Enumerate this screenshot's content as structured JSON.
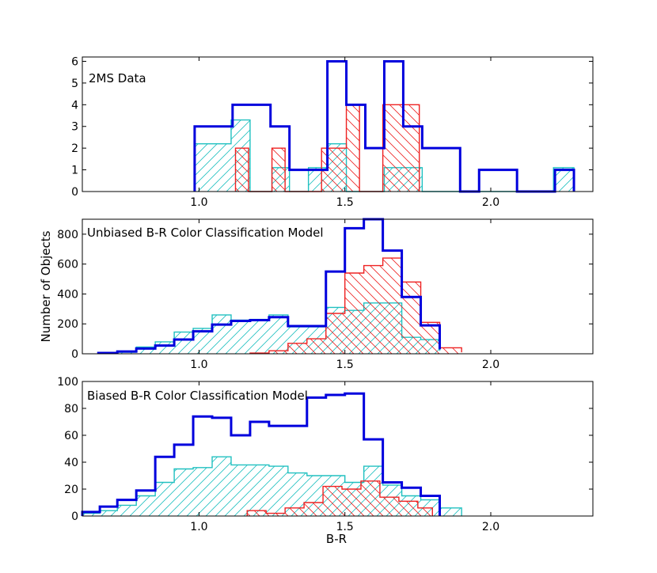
{
  "figure": {
    "ylabel": "Number of Objects",
    "xlabel": "B-R"
  },
  "colors": {
    "total": "#0000dd",
    "blue_class": "#20c0c0",
    "red_class": "#ee2222"
  },
  "chart_data": [
    {
      "type": "histogram",
      "title": "2MS Data",
      "xlim": [
        0.6,
        2.35
      ],
      "ylim": [
        0,
        6.2
      ],
      "xticks": [
        1.0,
        1.5,
        2.0
      ],
      "xtick_labels": [
        "1.0",
        "1.5",
        "2.0"
      ],
      "yticks": [
        0,
        1,
        2,
        3,
        4,
        5,
        6
      ],
      "ytick_labels": [
        "0",
        "1",
        "2",
        "3",
        "4",
        "5",
        "6"
      ],
      "series": [
        {
          "name": "total",
          "color_key": "total",
          "fill": "none",
          "edges": [
            0.985,
            1.115,
            1.245,
            1.31,
            1.375,
            1.44,
            1.505,
            1.57,
            1.635,
            1.7,
            1.765,
            1.895,
            1.96,
            2.09,
            2.22,
            2.285
          ],
          "values": [
            3,
            4,
            3,
            1,
            1,
            6,
            4,
            2,
            6,
            3,
            2,
            0,
            1,
            0,
            1
          ]
        },
        {
          "name": "blue",
          "color_key": "blue_class",
          "fill": "hatch-blue",
          "edges": [
            0.985,
            1.11,
            1.175,
            1.25,
            1.31,
            1.375,
            1.44,
            1.505,
            1.57,
            1.635,
            1.765,
            2.215,
            2.285
          ],
          "values": [
            2.2,
            3.3,
            0,
            1.1,
            0,
            1.1,
            2.2,
            0,
            0,
            1.1,
            0,
            1.1
          ]
        },
        {
          "name": "red",
          "color_key": "red_class",
          "fill": "hatch-red",
          "edges": [
            1.125,
            1.17,
            1.25,
            1.295,
            1.42,
            1.505,
            1.55,
            1.63,
            1.755
          ],
          "values": [
            2,
            0,
            2,
            0,
            2,
            4,
            0,
            4
          ]
        }
      ]
    },
    {
      "type": "histogram",
      "title": "Unbiased B-R Color Classification Model",
      "xlim": [
        0.6,
        2.35
      ],
      "ylim": [
        0,
        900
      ],
      "xticks": [
        1.0,
        1.5,
        2.0
      ],
      "xtick_labels": [
        "1.0",
        "1.5",
        "2.0"
      ],
      "yticks": [
        0,
        200,
        400,
        600,
        800
      ],
      "ytick_labels": [
        "0",
        "200",
        "400",
        "600",
        "800"
      ],
      "series": [
        {
          "name": "total",
          "color_key": "total",
          "fill": "none",
          "edges": [
            0.655,
            0.72,
            0.785,
            0.85,
            0.915,
            0.98,
            1.045,
            1.11,
            1.175,
            1.24,
            1.305,
            1.37,
            1.435,
            1.5,
            1.565,
            1.63,
            1.695,
            1.76,
            1.825
          ],
          "values": [
            5,
            15,
            35,
            55,
            95,
            150,
            195,
            220,
            225,
            245,
            185,
            185,
            550,
            840,
            900,
            690,
            380,
            190,
            30
          ]
        },
        {
          "name": "blue",
          "color_key": "blue_class",
          "fill": "hatch-blue",
          "edges": [
            0.655,
            0.72,
            0.785,
            0.85,
            0.915,
            0.98,
            1.045,
            1.11,
            1.175,
            1.24,
            1.305,
            1.37,
            1.435,
            1.5,
            1.565,
            1.63,
            1.695,
            1.76,
            1.825
          ],
          "values": [
            5,
            10,
            45,
            80,
            145,
            170,
            260,
            225,
            230,
            260,
            180,
            180,
            310,
            290,
            340,
            340,
            110,
            95,
            20
          ]
        },
        {
          "name": "red",
          "color_key": "red_class",
          "fill": "hatch-red",
          "edges": [
            1.175,
            1.24,
            1.305,
            1.37,
            1.435,
            1.5,
            1.565,
            1.63,
            1.695,
            1.76,
            1.825,
            1.9
          ],
          "values": [
            5,
            20,
            70,
            100,
            270,
            540,
            590,
            640,
            480,
            210,
            40,
            10
          ]
        }
      ]
    },
    {
      "type": "histogram",
      "title": "Biased B-R Color Classification Model",
      "xlim": [
        0.6,
        2.35
      ],
      "ylim": [
        0,
        100
      ],
      "xticks": [
        1.0,
        1.5,
        2.0
      ],
      "xtick_labels": [
        "1.0",
        "1.5",
        "2.0"
      ],
      "yticks": [
        0,
        20,
        40,
        60,
        80,
        100
      ],
      "ytick_labels": [
        "0",
        "20",
        "40",
        "60",
        "80",
        "100"
      ],
      "series": [
        {
          "name": "total",
          "color_key": "total",
          "fill": "none",
          "edges": [
            0.6,
            0.66,
            0.72,
            0.785,
            0.85,
            0.915,
            0.98,
            1.045,
            1.11,
            1.175,
            1.24,
            1.305,
            1.37,
            1.435,
            1.5,
            1.565,
            1.63,
            1.695,
            1.76,
            1.825
          ],
          "values": [
            3,
            7,
            12,
            19,
            44,
            53,
            74,
            73,
            60,
            70,
            67,
            67,
            88,
            90,
            91,
            57,
            25,
            21,
            15
          ]
        },
        {
          "name": "blue",
          "color_key": "blue_class",
          "fill": "hatch-blue",
          "edges": [
            0.6,
            0.66,
            0.72,
            0.785,
            0.85,
            0.915,
            0.98,
            1.045,
            1.11,
            1.175,
            1.24,
            1.305,
            1.37,
            1.435,
            1.5,
            1.565,
            1.63,
            1.695,
            1.76,
            1.825,
            1.9
          ],
          "values": [
            2,
            4,
            8,
            15,
            25,
            35,
            36,
            44,
            38,
            38,
            37,
            32,
            30,
            30,
            25,
            37,
            23,
            15,
            12,
            6
          ]
        },
        {
          "name": "red",
          "color_key": "red_class",
          "fill": "hatch-red",
          "edges": [
            1.165,
            1.23,
            1.295,
            1.36,
            1.425,
            1.49,
            1.555,
            1.62,
            1.685,
            1.75,
            1.8
          ],
          "values": [
            4,
            2,
            6,
            10,
            22,
            20,
            26,
            14,
            11,
            6
          ]
        }
      ]
    }
  ]
}
